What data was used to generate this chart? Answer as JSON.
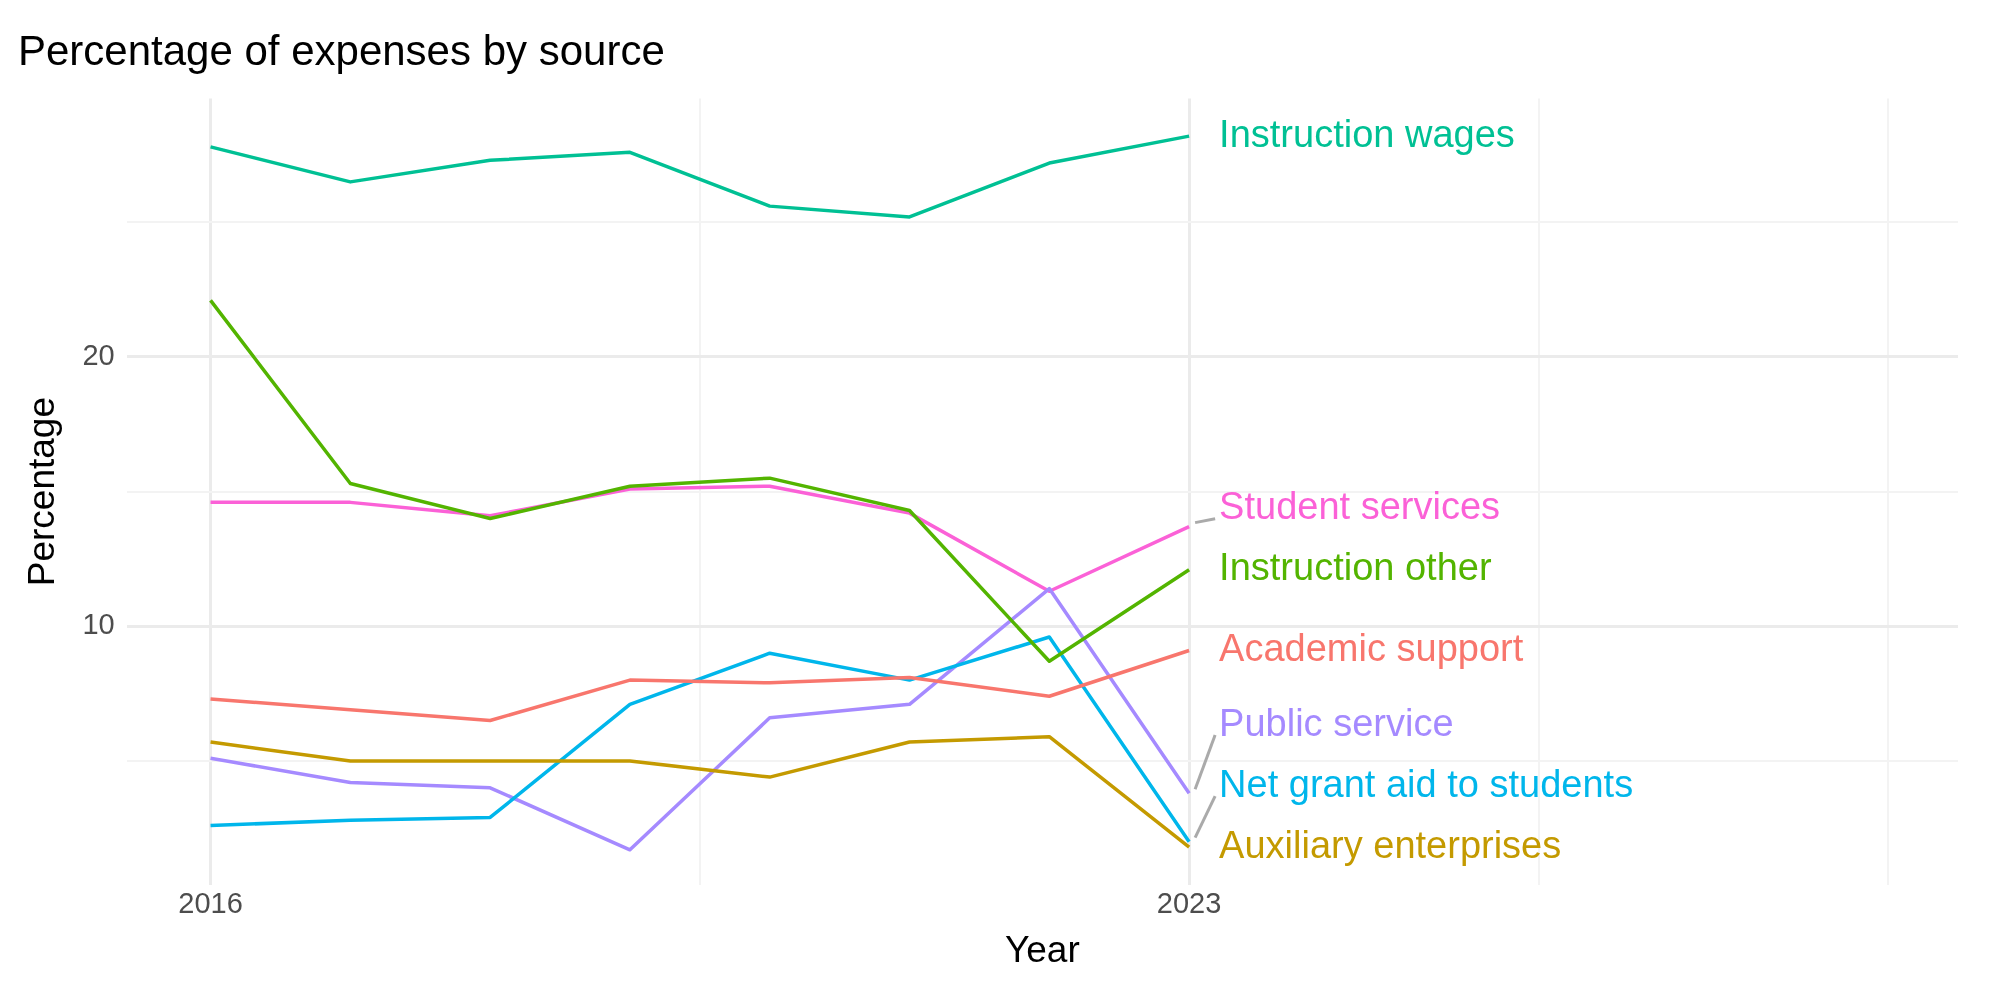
{
  "chart_data": {
    "type": "line",
    "title": "Percentage of expenses by source",
    "xlabel": "Year",
    "ylabel": "Percentage",
    "x": [
      2016,
      2017,
      2018,
      2019,
      2020,
      2021,
      2022,
      2023
    ],
    "xlim": [
      2015.4,
      2028.5
    ],
    "xticks": [
      2016,
      {
        "value": 2019.5,
        "label": null
      },
      2023,
      {
        "value": 2025.5,
        "label": null
      },
      {
        "value": 2028,
        "label": null
      }
    ],
    "ylim": [
      0.4,
      29.6
    ],
    "yticks": [
      {
        "value": 5,
        "label": null
      },
      10,
      {
        "value": 15,
        "label": null
      },
      20,
      {
        "value": 25,
        "label": null
      }
    ],
    "grid": true,
    "legend": false,
    "series": [
      {
        "name": "Academic support",
        "color": "#f8766d",
        "values": [
          7.3,
          6.9,
          6.5,
          8.0,
          7.9,
          8.1,
          7.4,
          9.1
        ]
      },
      {
        "name": "Auxiliary enterprises",
        "color": "#c49a00",
        "values": [
          5.7,
          5.0,
          5.0,
          5.0,
          4.4,
          5.7,
          5.9,
          1.8
        ]
      },
      {
        "name": "Instruction other",
        "color": "#53b400",
        "values": [
          22.1,
          15.3,
          14.0,
          15.2,
          15.5,
          14.3,
          8.7,
          12.1
        ]
      },
      {
        "name": "Instruction wages",
        "color": "#00c094",
        "values": [
          27.8,
          26.5,
          27.3,
          27.6,
          25.6,
          25.2,
          27.2,
          28.2
        ]
      },
      {
        "name": "Net grant aid to students",
        "color": "#00b6eb",
        "values": [
          2.6,
          2.8,
          2.9,
          7.1,
          9.0,
          8.0,
          9.6,
          2.0
        ]
      },
      {
        "name": "Public service",
        "color": "#a58aff",
        "values": [
          5.1,
          4.2,
          4.0,
          1.7,
          6.6,
          7.1,
          11.4,
          3.8
        ]
      },
      {
        "name": "Student services",
        "color": "#fb61d7",
        "values": [
          14.6,
          14.6,
          14.1,
          15.1,
          15.2,
          14.2,
          11.3,
          13.7
        ]
      }
    ]
  }
}
